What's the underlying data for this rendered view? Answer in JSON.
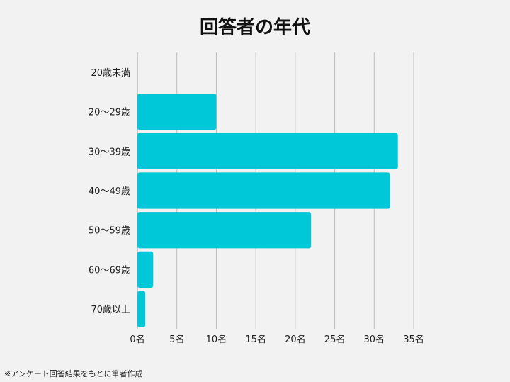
{
  "chart_data": {
    "type": "bar",
    "orientation": "horizontal",
    "title": "回答者の年代",
    "categories": [
      "20歳未満",
      "20〜29歳",
      "30〜39歳",
      "40〜49歳",
      "50〜59歳",
      "60〜69歳",
      "70歳以上"
    ],
    "values": [
      0,
      10,
      33,
      32,
      22,
      2,
      1
    ],
    "x_ticks": [
      "0名",
      "5名",
      "10名",
      "15名",
      "20名",
      "25名",
      "30名",
      "35名"
    ],
    "xlim": [
      0,
      35
    ],
    "grid": true,
    "bar_color": "#00c8d8",
    "grid_color": "#bdbdbd"
  },
  "footnote": "※アンケート回答結果をもとに筆者作成"
}
